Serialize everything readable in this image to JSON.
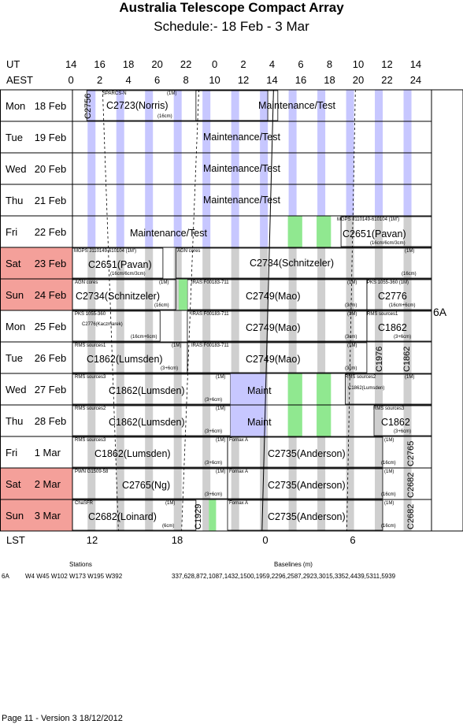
{
  "title": "Australia Telescope Compact Array",
  "subtitle": "Schedule:- 18 Feb - 3  Mar",
  "ut_label": "UT",
  "aest_label": "AEST",
  "ut_ticks": [
    "14",
    "16",
    "18",
    "20",
    "22",
    "0",
    "2",
    "4",
    "6",
    "8",
    "10",
    "12",
    "14"
  ],
  "aest_ticks": [
    "0",
    "2",
    "4",
    "6",
    "8",
    "10",
    "12",
    "14",
    "16",
    "18",
    "20",
    "22",
    "24"
  ],
  "lst_label": "LST",
  "lst_ticks": [
    "12",
    "18",
    "0",
    "6"
  ],
  "days": [
    {
      "name": "Mon",
      "date": "18 Feb",
      "weekend": false
    },
    {
      "name": "Tue",
      "date": "19 Feb",
      "weekend": false
    },
    {
      "name": "Wed",
      "date": "20 Feb",
      "weekend": false
    },
    {
      "name": "Thu",
      "date": "21 Feb",
      "weekend": false
    },
    {
      "name": "Fri",
      "date": "22 Feb",
      "weekend": false
    },
    {
      "name": "Sat",
      "date": "23 Feb",
      "weekend": true
    },
    {
      "name": "Sun",
      "date": "24 Feb",
      "weekend": true
    },
    {
      "name": "Mon",
      "date": "25 Feb",
      "weekend": false
    },
    {
      "name": "Tue",
      "date": "26 Feb",
      "weekend": false
    },
    {
      "name": "Wed",
      "date": "27 Feb",
      "weekend": false
    },
    {
      "name": "Thu",
      "date": "28 Feb",
      "weekend": false
    },
    {
      "name": "Fri",
      "date": "1 Mar",
      "weekend": false
    },
    {
      "name": "Sat",
      "date": "2 Mar",
      "weekend": true
    },
    {
      "name": "Sun",
      "date": "3 Mar",
      "weekend": true
    }
  ],
  "array_config": "6A",
  "stations_heading": "Stations",
  "baselines_heading": "Baselines (m)",
  "config_name": "6A",
  "stations": "W4 W45 W102 W173 W195 W392",
  "baselines": "337,628,872,1087,1432,1500,1959,2296,2587,2923,3015,3352,4439,5311,5939",
  "page_footer": "Page 11 - Version 3  18/12/2012",
  "colors": {
    "weekend": "#f4a09a",
    "stripe": "#cfcfcf",
    "dark": "#c7c7ff",
    "green": "#90e890"
  },
  "texts": {
    "c2756": "C2756",
    "sparcs": "SPARCS-N",
    "c2723": "C2723(Norris)",
    "maint_test": "Maintenance/Test",
    "mgps_fri": "MGPS J110149-610104 (1M')",
    "c2651_fri": "C2651(Pavan)",
    "mgps_band": "(16cm/6cm/3cm )",
    "mgps_sat": "MGPS J110149-610104 (1M')",
    "c2651_sat": "C2651(Pavan)",
    "agn_cores": "AGN cores",
    "c2734_sat": "C2734(Schnitzeler)",
    "c2734_sun": "C2734(Schnitzeler)",
    "iras": "IRAS F00183-711",
    "c2749": "C2749(Mao)",
    "pks_sun": "PKS 1055-360 (1M)",
    "c2776": "C2776",
    "pks_mon": "PKS 1055-360",
    "c2776k": "C2776(Kaczmarek)",
    "rms1": "RMS sources1",
    "c1862": "C1862",
    "c1862l": "C1862(Lumsden)",
    "c1976": "C1976",
    "rms3": "RMS sources3",
    "rms2": "RMS sources2",
    "maint": "Maint",
    "fornax": "Fornax A",
    "c2735": "C2735(Anderson)",
    "c2765": "C2765",
    "pwn": "PWN G1509-58",
    "c2765ng": "C2765(Ng)",
    "c2682": "C2682",
    "chasfr": "ChaSFR",
    "c2682l": "C2682(Loinard)",
    "c1929": "C1929",
    "m1": "(1M)",
    "m1p": "(1M')",
    "b16": "(16cm)",
    "b3": "(3cm)",
    "b6": "(6cm)",
    "b36": "(3+6cm)",
    "b166": "(16cm+6cm)",
    "b1663": "(16cm/6cm/3cm)"
  }
}
